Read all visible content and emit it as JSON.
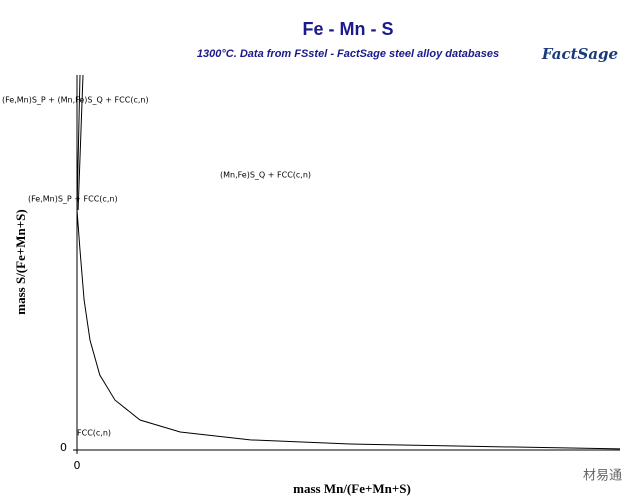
{
  "chart_data": {
    "type": "line",
    "title": "Fe - Mn - S",
    "subtitle": "1300°C.  Data from FSstel - FactSage steel alloy databases",
    "logo": "FactSage",
    "watermark": "材易通",
    "x_label": "mass Mn/(Fe+Mn+S)",
    "y_label": "mass S/(Fe+Mn+S)",
    "xlim": [
      0,
      1
    ],
    "ylim": [
      0,
      1
    ],
    "xticks": [
      0
    ],
    "yticks": [
      0
    ],
    "series": [
      {
        "color": "#000000",
        "x": [
          0,
          0.0055,
          0.013,
          0.024,
          0.042,
          0.07,
          0.116,
          0.19,
          0.319,
          0.503,
          0.687,
          1.0
        ],
        "values": [
          0.64,
          0.533,
          0.4,
          0.293,
          0.2,
          0.133,
          0.08,
          0.048,
          0.027,
          0.016,
          0.011,
          0.003
        ]
      },
      {
        "color": "#000000",
        "x": [
          0,
          0.0055
        ],
        "values": [
          0.64,
          1.0
        ]
      },
      {
        "color": "#000000",
        "x": [
          0.002,
          0.011
        ],
        "values": [
          0.64,
          1.0
        ]
      }
    ],
    "annotations": [
      "(Fe,Mn)S_P + (Mn,Fe)S_Q + FCC(c,n)",
      "(Mn,Fe)S_Q + FCC(c,n)",
      "(Fe,Mn)S_P + FCC(c,n)",
      "FCC(c,n)"
    ]
  }
}
